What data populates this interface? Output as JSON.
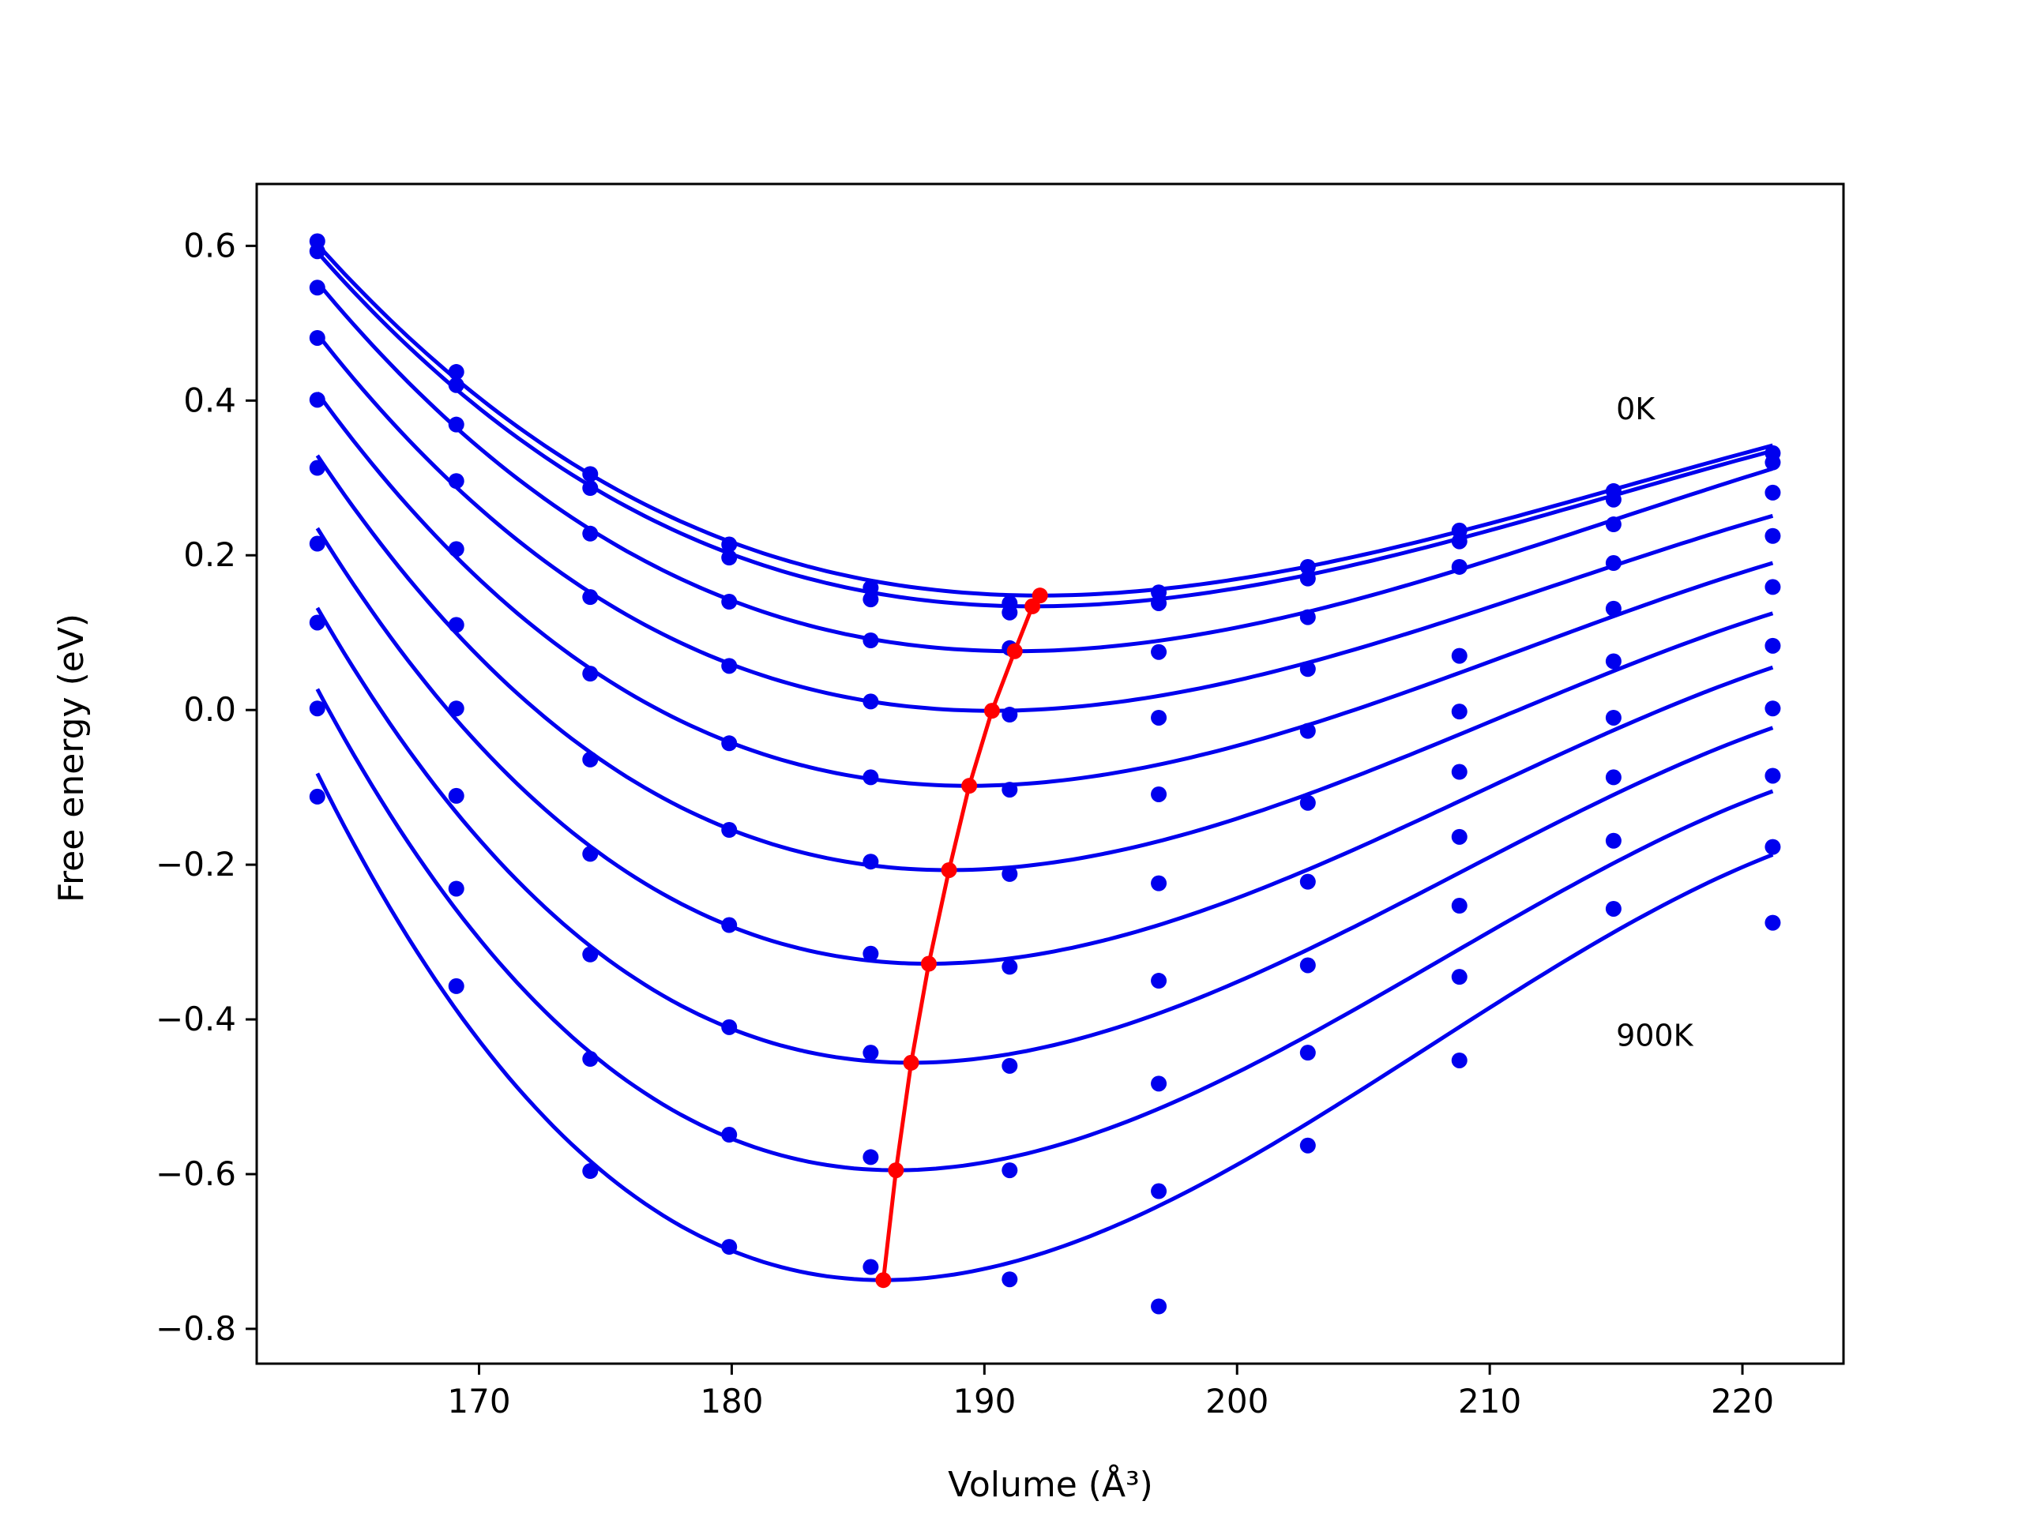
{
  "chart_data": {
    "type": "line",
    "title": "",
    "xlabel": "Volume (Å³)",
    "ylabel": "Free energy (eV)",
    "xlim": [
      161.2,
      224.0
    ],
    "ylim": [
      -0.845,
      0.68
    ],
    "x_ticks": [
      170,
      180,
      190,
      200,
      210,
      220
    ],
    "x_tick_labels": [
      "170",
      "180",
      "190",
      "200",
      "210",
      "220"
    ],
    "y_ticks": [
      0.6,
      0.4,
      0.2,
      0.0,
      -0.2,
      -0.4,
      -0.6,
      -0.8
    ],
    "y_tick_labels": [
      "0.6",
      "0.4",
      "0.2",
      "0.0",
      "−0.2",
      "−0.4",
      "−0.6",
      "−0.8"
    ],
    "grid": false,
    "legend": "none",
    "annotations": [
      {
        "text": "0K",
        "x": 215.0,
        "y": 0.39
      },
      {
        "text": "900K",
        "x": 215.0,
        "y": -0.42
      }
    ],
    "colors": {
      "fit": "#0000ee",
      "points": "#0000ee",
      "minima": "#ff0000"
    },
    "data_x": [
      163.6,
      169.1,
      174.4,
      179.9,
      185.5,
      191.0,
      196.9,
      202.8,
      208.8,
      214.9,
      221.2
    ],
    "curve_x_range": [
      163.6,
      221.2
    ],
    "series": [
      {
        "values": [
          0.606,
          0.437,
          0.305,
          0.214,
          0.158,
          0.138,
          0.152,
          0.185,
          0.232,
          0.283,
          0.332
        ],
        "fit_min": [
          192.2,
          0.148
        ],
        "fit_ends": [
          0.602,
          0.342
        ]
      },
      {
        "values": [
          0.593,
          0.42,
          0.287,
          0.197,
          0.143,
          0.126,
          0.138,
          0.17,
          0.218,
          0.272,
          0.32
        ],
        "fit_min": [
          191.9,
          0.134
        ],
        "fit_ends": [
          0.592,
          0.335
        ]
      },
      {
        "values": [
          0.546,
          0.369,
          0.228,
          0.14,
          0.09,
          0.08,
          0.075,
          0.12,
          0.185,
          0.24,
          0.281
        ],
        "fit_min": [
          191.2,
          0.076
        ],
        "fit_ends": [
          0.553,
          0.312
        ]
      },
      {
        "values": [
          0.481,
          0.296,
          0.146,
          0.057,
          0.011,
          -0.006,
          -0.01,
          0.053,
          0.07,
          0.19,
          0.225
        ],
        "fit_min": [
          190.3,
          -0.001
        ],
        "fit_ends": [
          0.486,
          0.251
        ]
      },
      {
        "values": [
          0.401,
          0.208,
          0.047,
          -0.043,
          -0.087,
          -0.103,
          -0.109,
          -0.027,
          -0.002,
          0.131,
          0.159
        ],
        "fit_min": [
          189.4,
          -0.098
        ],
        "fit_ends": [
          0.41,
          0.19
        ]
      },
      {
        "values": [
          0.313,
          0.11,
          -0.064,
          -0.155,
          -0.196,
          -0.212,
          -0.224,
          -0.12,
          -0.08,
          0.063,
          0.083
        ],
        "fit_min": [
          188.6,
          -0.207
        ],
        "fit_ends": [
          0.329,
          0.125
        ]
      },
      {
        "values": [
          0.215,
          0.002,
          -0.186,
          -0.278,
          -0.315,
          -0.332,
          -0.35,
          -0.222,
          -0.164,
          -0.01,
          0.002
        ],
        "fit_min": [
          187.8,
          -0.328
        ],
        "fit_ends": [
          0.235,
          0.055
        ]
      },
      {
        "values": [
          0.113,
          -0.111,
          -0.316,
          -0.41,
          -0.443,
          -0.46,
          -0.483,
          -0.33,
          -0.253,
          -0.087,
          -0.085
        ],
        "fit_min": [
          187.1,
          -0.456
        ],
        "fit_ends": [
          0.132,
          -0.023
        ]
      },
      {
        "values": [
          0.002,
          -0.231,
          -0.451,
          -0.549,
          -0.578,
          -0.595,
          -0.622,
          -0.443,
          -0.345,
          -0.169,
          -0.177
        ],
        "fit_min": [
          186.5,
          -0.595
        ],
        "fit_ends": [
          0.027,
          -0.105
        ]
      },
      {
        "values": [
          -0.112,
          -0.357,
          -0.596,
          -0.694,
          -0.72,
          -0.736,
          -0.771,
          -0.563,
          -0.453,
          -0.257,
          -0.275
        ],
        "fit_min": [
          186.0,
          -0.737
        ],
        "fit_ends": [
          -0.082,
          -0.187
        ]
      }
    ]
  }
}
